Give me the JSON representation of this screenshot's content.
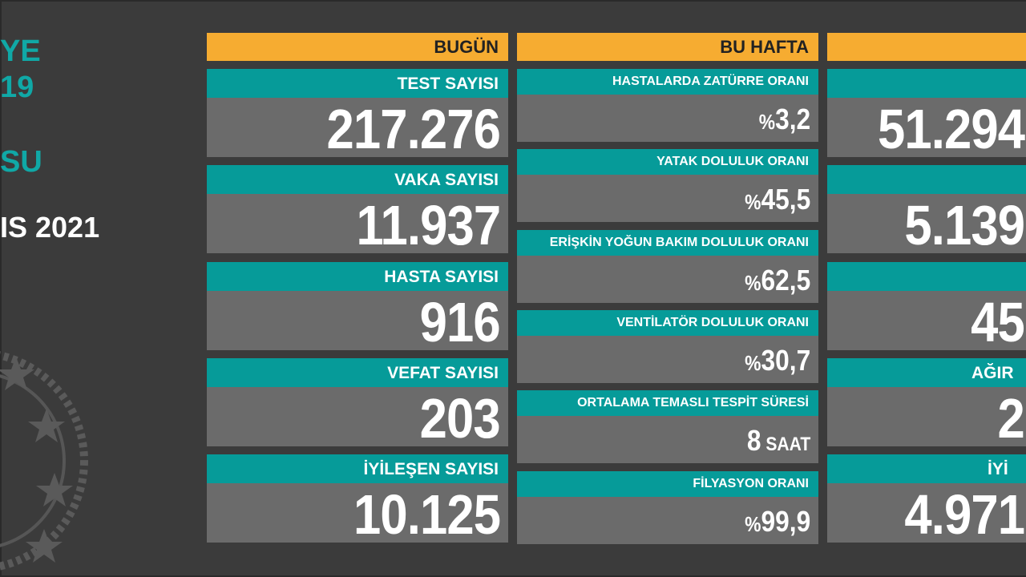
{
  "left_panel": {
    "line1": "YE",
    "line2": "19",
    "line3": "SU",
    "date": "IS 2021"
  },
  "colors": {
    "header": "#f6ac31",
    "label": "#069b99",
    "value_bg": "#6b6b6b",
    "background": "#3b3b3b"
  },
  "today": {
    "header": "BUGÜN",
    "items": [
      {
        "label": "TEST SAYISI",
        "value": "217.276"
      },
      {
        "label": "VAKA SAYISI",
        "value": "11.937"
      },
      {
        "label": "HASTA SAYISI",
        "value": "916"
      },
      {
        "label": "VEFAT SAYISI",
        "value": "203"
      },
      {
        "label": "İYİLEŞEN SAYISI",
        "value": "10.125"
      }
    ]
  },
  "week": {
    "header": "BU HAFTA",
    "items": [
      {
        "label": "HASTALARDA ZATÜRRE ORANI",
        "prefix": "%",
        "value": "3,2",
        "unit": ""
      },
      {
        "label": "YATAK DOLULUK ORANI",
        "prefix": "%",
        "value": "45,5",
        "unit": ""
      },
      {
        "label": "ERİŞKİN YOĞUN BAKIM DOLULUK ORANI",
        "prefix": "%",
        "value": "62,5",
        "unit": ""
      },
      {
        "label": "VENTİLATÖR DOLULUK ORANI",
        "prefix": "%",
        "value": "30,7",
        "unit": ""
      },
      {
        "label": "ORTALAMA TEMASLI TESPİT SÜRESİ",
        "prefix": "",
        "value": "8",
        "unit": " SAAT"
      },
      {
        "label": "FİLYASYON ORANI",
        "prefix": "%",
        "value": "99,9",
        "unit": ""
      }
    ]
  },
  "total": {
    "header": "",
    "items": [
      {
        "label": "",
        "value": "51.294"
      },
      {
        "label": "",
        "value": "5.139"
      },
      {
        "label": "",
        "value": "45"
      },
      {
        "label": "AĞIR",
        "value": "2"
      },
      {
        "label": "İYİ",
        "value": "4.971"
      }
    ]
  }
}
